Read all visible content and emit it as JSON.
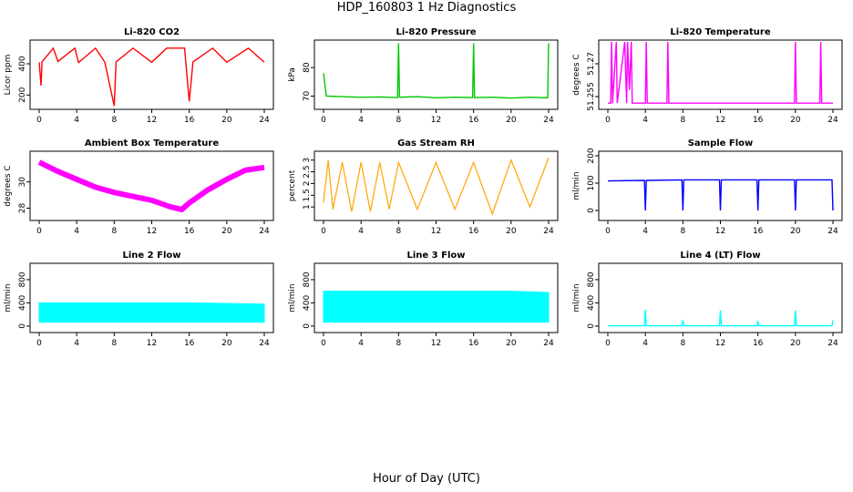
{
  "figure": {
    "title": "HDP_160803  1 Hz Diagnostics",
    "xlabel": "Hour of Day (UTC)"
  },
  "chart_data": [
    {
      "type": "line",
      "title": "Li-820 CO2",
      "xlabel": "",
      "ylabel": "Licor ppm",
      "color": "#ff0000",
      "xlim": [
        0,
        24
      ],
      "ylim": [
        120,
        540
      ],
      "xticks": [
        0,
        4,
        8,
        12,
        16,
        20,
        24
      ],
      "yticks": [
        200,
        400
      ],
      "series": [
        {
          "values": [
            [
              0,
              410
            ],
            [
              0.2,
              260
            ],
            [
              0.3,
              412
            ],
            [
              1.5,
              500
            ],
            [
              2,
              415
            ],
            [
              3.8,
              500
            ],
            [
              4.2,
              408
            ],
            [
              6,
              500
            ],
            [
              7,
              410
            ],
            [
              8,
              130
            ],
            [
              8.2,
              412
            ],
            [
              10,
              500
            ],
            [
              12,
              410
            ],
            [
              13.6,
              500
            ],
            [
              15.5,
              500
            ],
            [
              16,
              160
            ],
            [
              16.4,
              412
            ],
            [
              18.5,
              500
            ],
            [
              20,
              410
            ],
            [
              22.3,
              500
            ],
            [
              24,
              410
            ]
          ]
        }
      ]
    },
    {
      "type": "line",
      "title": "Li-820 Pressure",
      "xlabel": "",
      "ylabel": "kPa",
      "color": "#00c800",
      "xlim": [
        0,
        24
      ],
      "ylim": [
        66,
        89
      ],
      "xticks": [
        0,
        4,
        8,
        12,
        16,
        20,
        24
      ],
      "yticks": [
        70,
        80
      ],
      "series": [
        {
          "values": [
            [
              0,
              78
            ],
            [
              0.3,
              70
            ],
            [
              2,
              69.8
            ],
            [
              4,
              69.6
            ],
            [
              6,
              69.7
            ],
            [
              7.9,
              69.5
            ],
            [
              8,
              88.5
            ],
            [
              8.1,
              69.6
            ],
            [
              10,
              69.8
            ],
            [
              12,
              69.4
            ],
            [
              14,
              69.6
            ],
            [
              15.9,
              69.5
            ],
            [
              16,
              88.5
            ],
            [
              16.1,
              69.5
            ],
            [
              18,
              69.6
            ],
            [
              20,
              69.3
            ],
            [
              22,
              69.6
            ],
            [
              23.9,
              69.4
            ],
            [
              24,
              88.5
            ]
          ]
        }
      ]
    },
    {
      "type": "line",
      "title": "Li-820 Temperature",
      "xlabel": "",
      "ylabel": "degrees C",
      "color": "#ff00ff",
      "xlim": [
        0,
        24
      ],
      "ylim": [
        51.25,
        51.28
      ],
      "xticks": [
        0,
        4,
        8,
        12,
        16,
        20,
        24
      ],
      "yticks": [
        51.255,
        51.27
      ],
      "series": [
        {
          "values": [
            [
              0,
              51.252
            ],
            [
              0.3,
              51.252
            ],
            [
              0.4,
              51.28
            ],
            [
              0.5,
              51.252
            ],
            [
              0.9,
              51.28
            ],
            [
              1,
              51.252
            ],
            [
              1.8,
              51.28
            ],
            [
              2,
              51.252
            ],
            [
              2.1,
              51.28
            ],
            [
              2.3,
              51.258
            ],
            [
              2.5,
              51.28
            ],
            [
              2.6,
              51.252
            ],
            [
              4,
              51.252
            ],
            [
              4.1,
              51.28
            ],
            [
              4.2,
              51.252
            ],
            [
              6.3,
              51.252
            ],
            [
              6.4,
              51.28
            ],
            [
              6.5,
              51.252
            ],
            [
              19.9,
              51.252
            ],
            [
              20,
              51.28
            ],
            [
              20.1,
              51.252
            ],
            [
              22.6,
              51.252
            ],
            [
              22.7,
              51.28
            ],
            [
              22.8,
              51.252
            ],
            [
              24,
              51.252
            ]
          ]
        }
      ]
    },
    {
      "type": "line",
      "title": "Ambient Box Temperature",
      "xlabel": "",
      "ylabel": "degrees C",
      "color": "#ff00ff",
      "xlim": [
        0,
        24
      ],
      "ylim": [
        27.2,
        32.2
      ],
      "xticks": [
        0,
        4,
        8,
        12,
        16,
        20,
        24
      ],
      "yticks": [
        28,
        30
      ],
      "series": [
        {
          "values": [
            [
              0,
              31.5
            ],
            [
              2,
              30.8
            ],
            [
              4,
              30.2
            ],
            [
              6,
              29.6
            ],
            [
              8,
              29.2
            ],
            [
              10,
              28.9
            ],
            [
              12,
              28.6
            ],
            [
              14,
              28.1
            ],
            [
              15.2,
              27.9
            ],
            [
              16,
              28.4
            ],
            [
              18,
              29.4
            ],
            [
              20,
              30.2
            ],
            [
              22,
              30.9
            ],
            [
              24,
              31.1
            ]
          ]
        }
      ]
    },
    {
      "type": "line",
      "title": "Gas Stream RH",
      "xlabel": "",
      "ylabel": "percent",
      "color": "#ffa500",
      "xlim": [
        0,
        24
      ],
      "ylim": [
        0.5,
        3.3
      ],
      "xticks": [
        0,
        4,
        8,
        12,
        16,
        20,
        24
      ],
      "yticks": [
        1.0,
        1.5,
        2.0,
        2.5,
        3.0
      ],
      "series": [
        {
          "values": [
            [
              0,
              1.2
            ],
            [
              0.5,
              3.0
            ],
            [
              1,
              0.9
            ],
            [
              2,
              2.9
            ],
            [
              3,
              0.8
            ],
            [
              4,
              2.9
            ],
            [
              5,
              0.8
            ],
            [
              6,
              2.9
            ],
            [
              7,
              0.9
            ],
            [
              8,
              2.9
            ],
            [
              10,
              0.9
            ],
            [
              12,
              2.9
            ],
            [
              14,
              0.9
            ],
            [
              16,
              2.9
            ],
            [
              18,
              0.7
            ],
            [
              20,
              3.0
            ],
            [
              22,
              1.0
            ],
            [
              24,
              3.1
            ]
          ]
        }
      ]
    },
    {
      "type": "line",
      "title": "Sample Flow",
      "xlabel": "",
      "ylabel": "ml/min",
      "color": "#0000ff",
      "xlim": [
        0,
        24
      ],
      "ylim": [
        -30,
        210
      ],
      "xticks": [
        0,
        4,
        8,
        12,
        16,
        20,
        24
      ],
      "yticks": [
        0,
        100,
        200
      ],
      "series": [
        {
          "values": [
            [
              0,
              108
            ],
            [
              3.9,
              110
            ],
            [
              4,
              0
            ],
            [
              4.1,
              110
            ],
            [
              7.9,
              112
            ],
            [
              8,
              0
            ],
            [
              8.1,
              112
            ],
            [
              11.9,
              112
            ],
            [
              12,
              0
            ],
            [
              12.1,
              112
            ],
            [
              15.9,
              112
            ],
            [
              16,
              0
            ],
            [
              16.1,
              112
            ],
            [
              19.9,
              112
            ],
            [
              20,
              0
            ],
            [
              20.1,
              112
            ],
            [
              23.9,
              112
            ],
            [
              24,
              0
            ]
          ]
        }
      ]
    },
    {
      "type": "area",
      "title": "Line 2 Flow",
      "xlabel": "",
      "ylabel": "ml/min",
      "color": "#00ffff",
      "xlim": [
        0,
        24
      ],
      "ylim": [
        -80,
        1050
      ],
      "xticks": [
        0,
        4,
        8,
        12,
        16,
        20,
        24
      ],
      "yticks": [
        0,
        400,
        800
      ],
      "series": [
        {
          "values": [
            [
              0,
              400
            ],
            [
              4,
              400
            ],
            [
              8,
              400
            ],
            [
              12,
              400
            ],
            [
              16,
              400
            ],
            [
              20,
              390
            ],
            [
              24,
              380
            ]
          ]
        }
      ]
    },
    {
      "type": "area",
      "title": "Line 3 Flow",
      "xlabel": "",
      "ylabel": "ml/min",
      "color": "#00ffff",
      "xlim": [
        0,
        24
      ],
      "ylim": [
        -80,
        1050
      ],
      "xticks": [
        0,
        4,
        8,
        12,
        16,
        20,
        24
      ],
      "yticks": [
        0,
        400,
        800
      ],
      "series": [
        {
          "values": [
            [
              0,
              600
            ],
            [
              4,
              600
            ],
            [
              8,
              600
            ],
            [
              12,
              600
            ],
            [
              16,
              600
            ],
            [
              20,
              600
            ],
            [
              24,
              580
            ]
          ]
        }
      ]
    },
    {
      "type": "line",
      "title": "Line 4 (LT) Flow",
      "xlabel": "",
      "ylabel": "ml/min",
      "color": "#00ffff",
      "xlim": [
        0,
        24
      ],
      "ylim": [
        -80,
        1050
      ],
      "xticks": [
        0,
        4,
        8,
        12,
        16,
        20,
        24
      ],
      "yticks": [
        0,
        400,
        800
      ],
      "series": [
        {
          "values": [
            [
              0,
              5
            ],
            [
              3.9,
              5
            ],
            [
              4,
              280
            ],
            [
              4.1,
              5
            ],
            [
              7.9,
              5
            ],
            [
              8,
              100
            ],
            [
              8.1,
              5
            ],
            [
              11.9,
              5
            ],
            [
              12,
              270
            ],
            [
              12.1,
              5
            ],
            [
              15.9,
              5
            ],
            [
              16,
              90
            ],
            [
              16.1,
              5
            ],
            [
              19.9,
              5
            ],
            [
              20,
              270
            ],
            [
              20.1,
              5
            ],
            [
              23.9,
              5
            ],
            [
              24,
              100
            ]
          ]
        }
      ]
    }
  ]
}
